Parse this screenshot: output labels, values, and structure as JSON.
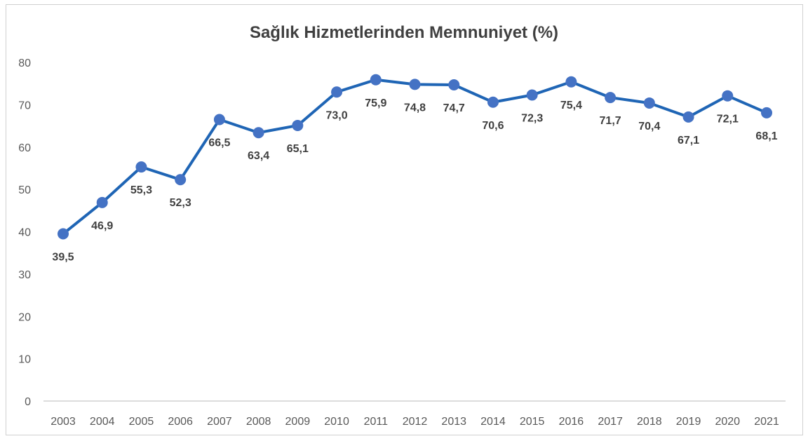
{
  "chart_data": {
    "type": "line",
    "title": "Sağlık Hizmetlerinden Memnuniyet (%)",
    "xlabel": "",
    "ylabel": "",
    "ylim": [
      0,
      80
    ],
    "yticks": [
      "0",
      "10",
      "20",
      "30",
      "40",
      "50",
      "60",
      "70",
      "80"
    ],
    "categories": [
      "2003",
      "2004",
      "2005",
      "2006",
      "2007",
      "2008",
      "2009",
      "2010",
      "2011",
      "2012",
      "2013",
      "2014",
      "2015",
      "2016",
      "2017",
      "2018",
      "2019",
      "2020",
      "2021"
    ],
    "series": [
      {
        "name": "Memnuniyet",
        "values": [
          39.5,
          46.9,
          55.3,
          52.3,
          66.5,
          63.4,
          65.1,
          73.0,
          75.9,
          74.8,
          74.7,
          70.6,
          72.3,
          75.4,
          71.7,
          70.4,
          67.1,
          72.1,
          68.1
        ],
        "labels": [
          "39,5",
          "46,9",
          "55,3",
          "52,3",
          "66,5",
          "63,4",
          "65,1",
          "73,0",
          "75,9",
          "74,8",
          "74,7",
          "70,6",
          "72,3",
          "75,4",
          "71,7",
          "70,4",
          "67,1",
          "72,1",
          "68,1"
        ],
        "line_color": "#1f65b5",
        "marker_color": "#4472c4"
      }
    ],
    "grid": false,
    "legend": "none"
  }
}
